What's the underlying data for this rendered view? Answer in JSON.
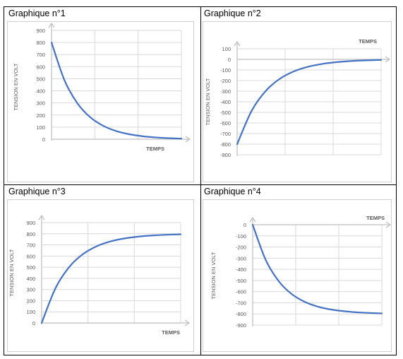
{
  "chart_data": [
    {
      "type": "line",
      "title": "Graphique n°1",
      "xlabel": "TEMPS",
      "ylabel": "TENSION EN VOLT",
      "ylim": [
        0,
        900
      ],
      "yticks": [
        0,
        100,
        200,
        300,
        400,
        500,
        600,
        700,
        800,
        900
      ],
      "grid": true,
      "x_axis_at": "zero-bottom",
      "curve": "exponential decay",
      "series": [
        {
          "x": [
            0,
            0.1,
            0.2,
            0.3,
            0.4,
            0.5,
            0.6,
            0.7,
            0.8,
            0.9,
            1.0
          ],
          "y": [
            800,
            487,
            296,
            180,
            110,
            67,
            41,
            25,
            15,
            9,
            5
          ]
        }
      ]
    },
    {
      "type": "line",
      "title": "Graphique n°2",
      "xlabel": "TEMPS",
      "ylabel": "TENSION EN VOLT",
      "ylim": [
        -900,
        100
      ],
      "yticks": [
        100,
        0,
        -100,
        -200,
        -300,
        -400,
        -500,
        -600,
        -700,
        -800,
        -900
      ],
      "grid": true,
      "x_axis_at": "zero-top",
      "curve": "exponential rise to 0",
      "series": [
        {
          "x": [
            0,
            0.1,
            0.2,
            0.3,
            0.4,
            0.5,
            0.6,
            0.7,
            0.8,
            0.9,
            1.0
          ],
          "y": [
            -800,
            -487,
            -296,
            -180,
            -110,
            -67,
            -41,
            -25,
            -15,
            -9,
            -5
          ]
        }
      ]
    },
    {
      "type": "line",
      "title": "Graphique n°3",
      "xlabel": "TEMPS",
      "ylabel": "TENSION EN VOLT",
      "ylim": [
        0,
        900
      ],
      "yticks": [
        0,
        100,
        200,
        300,
        400,
        500,
        600,
        700,
        800,
        900
      ],
      "grid": true,
      "x_axis_at": "zero-bottom",
      "curve": "exponential rise to 800",
      "series": [
        {
          "x": [
            0,
            0.1,
            0.2,
            0.3,
            0.4,
            0.5,
            0.6,
            0.7,
            0.8,
            0.9,
            1.0
          ],
          "y": [
            0,
            313,
            504,
            620,
            690,
            733,
            759,
            775,
            785,
            791,
            795
          ]
        }
      ]
    },
    {
      "type": "line",
      "title": "Graphique n°4",
      "xlabel": "TEMPS",
      "ylabel": "TENSION EN VOLT",
      "ylim": [
        -900,
        0
      ],
      "yticks": [
        0,
        -100,
        -200,
        -300,
        -400,
        -500,
        -600,
        -700,
        -800,
        -900
      ],
      "grid": true,
      "x_axis_at": "zero-top",
      "curve": "exponential fall to -800",
      "series": [
        {
          "x": [
            0,
            0.1,
            0.2,
            0.3,
            0.4,
            0.5,
            0.6,
            0.7,
            0.8,
            0.9,
            1.0
          ],
          "y": [
            0,
            -313,
            -504,
            -620,
            -690,
            -733,
            -759,
            -775,
            -785,
            -791,
            -795
          ]
        }
      ]
    }
  ]
}
